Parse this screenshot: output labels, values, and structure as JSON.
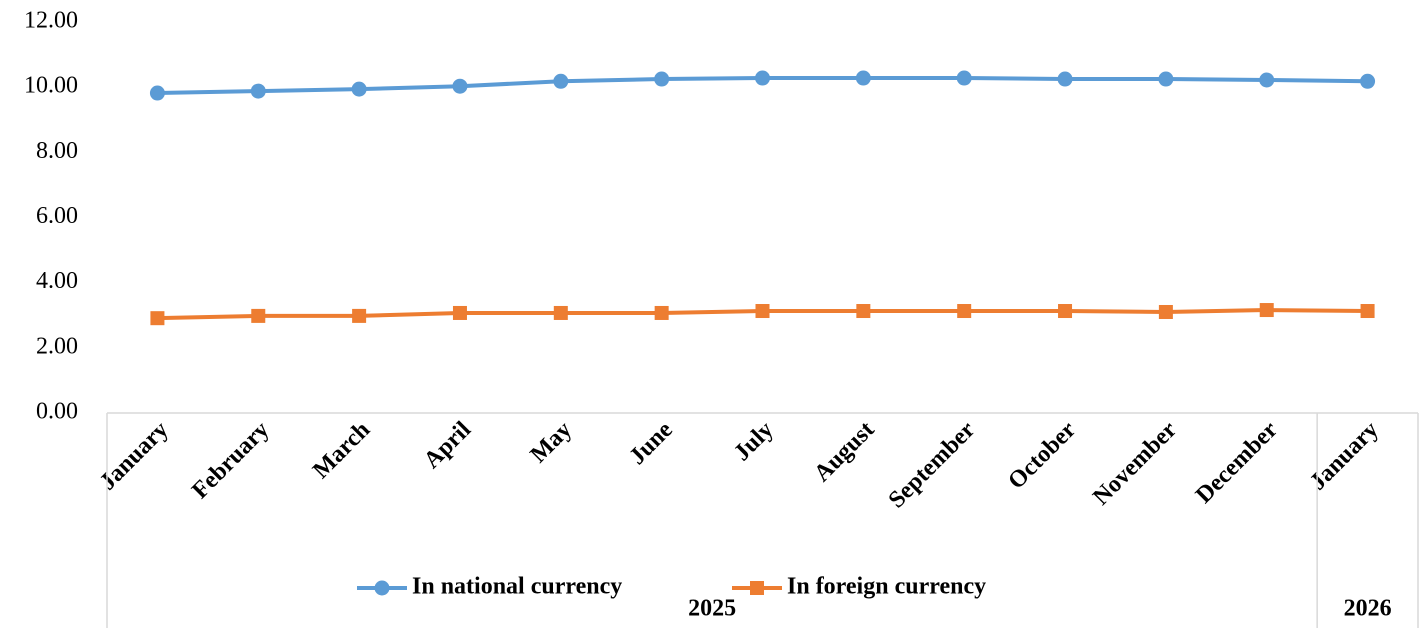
{
  "chart_data": {
    "type": "line",
    "groups": [
      {
        "name": "2025",
        "categories": [
          "January",
          "February",
          "March",
          "April",
          "May",
          "June",
          "July",
          "August",
          "September",
          "October",
          "November",
          "December"
        ]
      },
      {
        "name": "2026",
        "categories": [
          "January"
        ]
      }
    ],
    "series": [
      {
        "name": "In national currency",
        "color": "#5b9bd5",
        "marker": "circle",
        "values": [
          9.82,
          9.88,
          9.94,
          10.03,
          10.18,
          10.25,
          10.28,
          10.28,
          10.28,
          10.25,
          10.25,
          10.22,
          10.18
        ]
      },
      {
        "name": "In foreign currency",
        "color": "#ed7d31",
        "marker": "square",
        "values": [
          2.91,
          2.98,
          2.98,
          3.07,
          3.07,
          3.07,
          3.13,
          3.13,
          3.13,
          3.13,
          3.1,
          3.16,
          3.13
        ]
      }
    ],
    "ylim": [
      0,
      12
    ],
    "yticks": [
      {
        "value": 0,
        "label": "0.00"
      },
      {
        "value": 2,
        "label": "2.00"
      },
      {
        "value": 4,
        "label": "4.00"
      },
      {
        "value": 6,
        "label": "6.00"
      },
      {
        "value": 8,
        "label": "8.00"
      },
      {
        "value": 10,
        "label": "10.00"
      },
      {
        "value": 12,
        "label": "12.00"
      }
    ],
    "grid": false,
    "legend": "bottom"
  }
}
